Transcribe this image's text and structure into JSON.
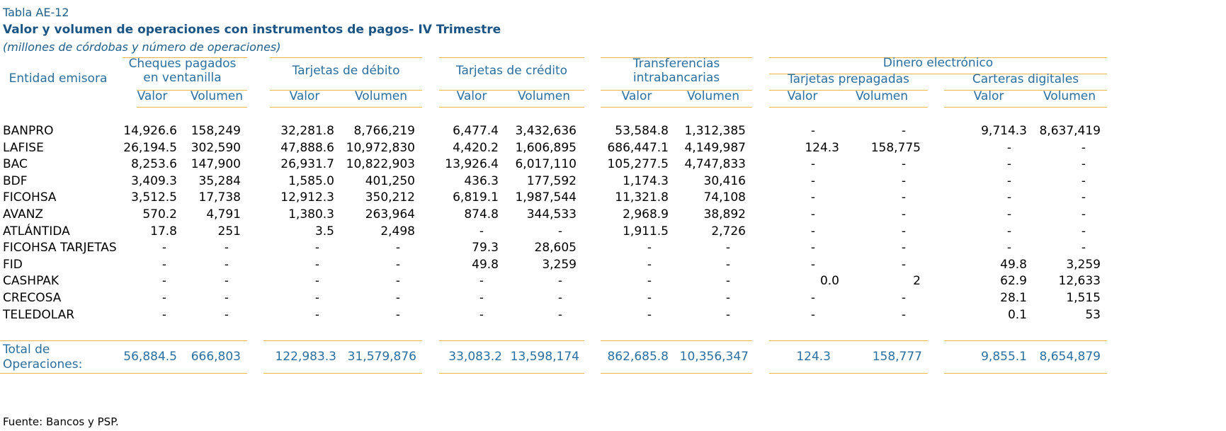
{
  "table_label": "Tabla AE-12",
  "title": "Valor y volumen de operaciones con instrumentos de pagos- IV Trimestre",
  "subtitle": "(millones de córdobas y número de operaciones)",
  "headers": {
    "entity": "Entidad emisora",
    "cheques": "Cheques pagados en ventanilla",
    "debito": "Tarjetas de débito",
    "credito": "Tarjetas de crédito",
    "transfer": "Transferencias intrabancarias",
    "dinero": "Dinero electrónico",
    "prepagadas": "Tarjetas prepagadas",
    "carteras": "Carteras digitales",
    "valor": "Valor",
    "volumen": "Volumen"
  },
  "rows": [
    {
      "name": "BANPRO",
      "v": [
        "14,926.6",
        "158,249",
        "32,281.8",
        "8,766,219",
        "6,477.4",
        "3,432,636",
        "53,584.8",
        "1,312,385",
        "-",
        "-",
        "9,714.3",
        "8,637,419"
      ]
    },
    {
      "name": "LAFISE",
      "v": [
        "26,194.5",
        "302,590",
        "47,888.6",
        "10,972,830",
        "4,420.2",
        "1,606,895",
        "686,447.1",
        "4,149,987",
        "124.3",
        "158,775",
        "-",
        "-"
      ]
    },
    {
      "name": "BAC",
      "v": [
        "8,253.6",
        "147,900",
        "26,931.7",
        "10,822,903",
        "13,926.4",
        "6,017,110",
        "105,277.5",
        "4,747,833",
        "-",
        "-",
        "-",
        "-"
      ]
    },
    {
      "name": "BDF",
      "v": [
        "3,409.3",
        "35,284",
        "1,585.0",
        "401,250",
        "436.3",
        "177,592",
        "1,174.3",
        "30,416",
        "-",
        "-",
        "-",
        "-"
      ]
    },
    {
      "name": "FICOHSA",
      "v": [
        "3,512.5",
        "17,738",
        "12,912.3",
        "350,212",
        "6,819.1",
        "1,987,544",
        "11,321.8",
        "74,108",
        "-",
        "-",
        "-",
        "-"
      ]
    },
    {
      "name": "AVANZ",
      "v": [
        "570.2",
        "4,791",
        "1,380.3",
        "263,964",
        "874.8",
        "344,533",
        "2,968.9",
        "38,892",
        "-",
        "-",
        "-",
        "-"
      ]
    },
    {
      "name": "ATLÁNTIDA",
      "v": [
        "17.8",
        "251",
        "3.5",
        "2,498",
        "-",
        "-",
        "1,911.5",
        "2,726",
        "-",
        "-",
        "-",
        "-"
      ]
    },
    {
      "name": "FICOHSA TARJETAS",
      "v": [
        "-",
        "-",
        "-",
        "-",
        "79.3",
        "28,605",
        "-",
        "-",
        "-",
        "-",
        "-",
        "-"
      ]
    },
    {
      "name": "FID",
      "v": [
        "-",
        "-",
        "-",
        "-",
        "49.8",
        "3,259",
        "-",
        "-",
        "-",
        "-",
        "49.8",
        "3,259"
      ]
    },
    {
      "name": "CASHPAK",
      "v": [
        "-",
        "-",
        "-",
        "-",
        "-",
        "-",
        "-",
        "-",
        "0.0",
        "2",
        "62.9",
        "12,633"
      ]
    },
    {
      "name": "CRECOSA",
      "v": [
        "-",
        "-",
        "-",
        "-",
        "-",
        "-",
        "-",
        "-",
        "-",
        "-",
        "28.1",
        "1,515"
      ]
    },
    {
      "name": "TELEDOLAR",
      "v": [
        "-",
        "-",
        "-",
        "-",
        "-",
        "-",
        "-",
        "-",
        "-",
        "-",
        "0.1",
        "53"
      ]
    }
  ],
  "total": {
    "label_line1": "Total de",
    "label_line2": "Operaciones:",
    "v": [
      "56,884.5",
      "666,803",
      "122,983.3",
      "31,579,876",
      "33,083.2",
      "13,598,174",
      "862,685.8",
      "10,356,347",
      "124.3",
      "158,777",
      "9,855.1",
      "8,654,879"
    ]
  },
  "source": "Fuente: Bancos y PSP."
}
